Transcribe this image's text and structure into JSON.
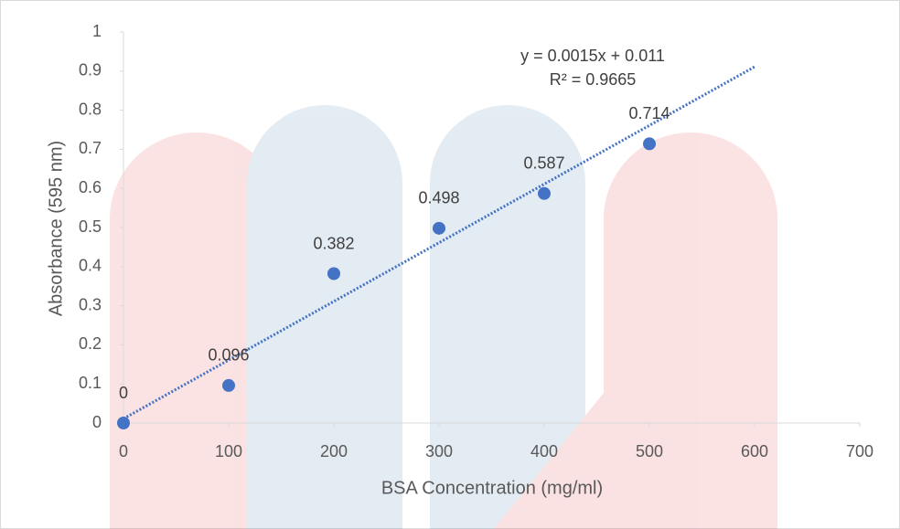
{
  "chart_data": {
    "type": "scatter",
    "x_label": "BSA Concentration (mg/ml)",
    "y_label": "Absorbance (595 nm)",
    "x": [
      0,
      100,
      200,
      300,
      400,
      500
    ],
    "values": [
      0,
      0.096,
      0.382,
      0.498,
      0.587,
      0.714
    ],
    "color": "#4472c4",
    "xlim": [
      0,
      700
    ],
    "xticks": [
      0,
      100,
      200,
      300,
      400,
      500,
      600,
      700
    ],
    "ylim": [
      0,
      1
    ],
    "yticks": [
      0,
      0.1,
      0.2,
      0.3,
      0.4,
      0.5,
      0.6,
      0.7,
      0.8,
      0.9,
      1
    ],
    "grid": false,
    "trendline": {
      "equation": "y = 0.0015x + 0.011",
      "r_squared": "R² = 0.9665",
      "slope": 0.0015,
      "intercept": 0.011,
      "x_range": [
        0,
        600
      ]
    }
  }
}
